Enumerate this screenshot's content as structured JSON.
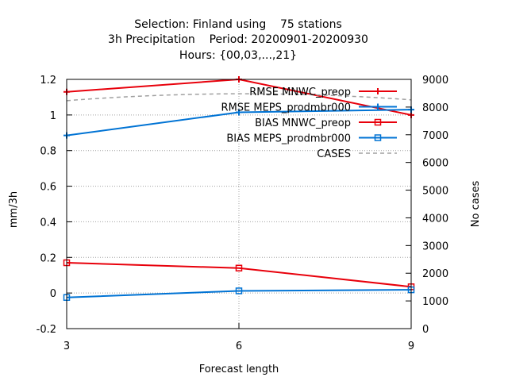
{
  "chart_data": {
    "type": "line",
    "title_lines": [
      "Selection: Finland using    75 stations",
      "3h Precipitation    Period: 20200901-20200930",
      "Hours: {00,03,...,21}"
    ],
    "xlabel": "Forecast length",
    "ylabel": "mm/3h",
    "y2label": "No cases",
    "x": [
      3,
      6,
      9
    ],
    "xlim": [
      3,
      9
    ],
    "ylim": [
      -0.2,
      1.2
    ],
    "y2lim": [
      0,
      9000
    ],
    "x_ticks": [
      "3",
      "6",
      "9"
    ],
    "y_ticks": [
      "-0.2",
      "0",
      "0.2",
      "0.4",
      "0.6",
      "0.8",
      "1",
      "1.2"
    ],
    "y2_ticks": [
      "0",
      "1000",
      "2000",
      "3000",
      "4000",
      "5000",
      "6000",
      "7000",
      "8000",
      "9000"
    ],
    "grid": true,
    "legend_position": "top-right",
    "series": [
      {
        "name": "RMSE MNWC_preop",
        "values": [
          1.13,
          1.2,
          1.0
        ],
        "color": "#e8000b",
        "marker": "plus",
        "axis": "left"
      },
      {
        "name": "RMSE MEPS_prodmbr000",
        "values": [
          0.885,
          1.015,
          1.03
        ],
        "color": "#0073d4",
        "marker": "plus",
        "axis": "left"
      },
      {
        "name": "BIAS MNWC_preop",
        "values": [
          0.17,
          0.14,
          0.035
        ],
        "color": "#e8000b",
        "marker": "square",
        "axis": "left"
      },
      {
        "name": "BIAS MEPS_prodmbr000",
        "values": [
          -0.025,
          0.012,
          0.018
        ],
        "color": "#0073d4",
        "marker": "square",
        "axis": "left"
      },
      {
        "name": "CASES",
        "values": [
          8230,
          8480,
          8260
        ],
        "color": "#a0a0a0",
        "marker": "none",
        "dashed": true,
        "axis": "right"
      }
    ]
  }
}
